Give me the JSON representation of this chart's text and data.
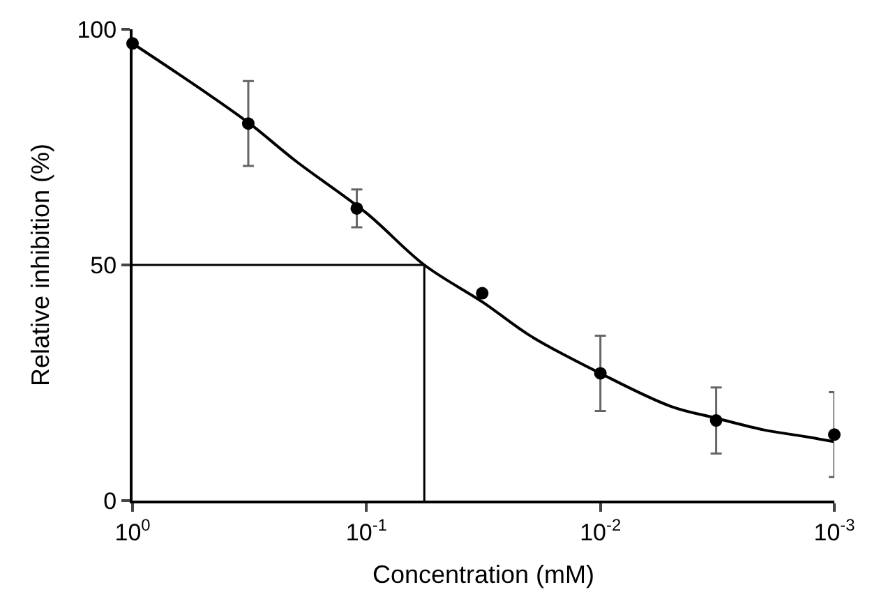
{
  "chart_data": {
    "type": "scatter",
    "xlabel": "Concentration (mM)",
    "ylabel": "Relative inhibition (%)",
    "log": "x",
    "xlim": [
      1,
      0.001
    ],
    "xticks": [
      {
        "value": 1,
        "label": "10$^{0}$"
      },
      {
        "value": 0.1,
        "label": "10$^{-1}$"
      },
      {
        "value": 0.01,
        "label": "10$^{-2}$"
      },
      {
        "value": 0.001,
        "label": "10$^{-3}$"
      }
    ],
    "ylim": [
      0,
      100
    ],
    "yticks": [
      0,
      50,
      100
    ],
    "x": [
      1,
      0.32,
      0.11,
      0.032,
      0.01,
      0.0032,
      0.001
    ],
    "series": [
      {
        "marker": "circle",
        "color": "#000000",
        "values": [
          97,
          80,
          62,
          44,
          27,
          17,
          14
        ],
        "errors": [
          null,
          9,
          4,
          null,
          8,
          7,
          9
        ]
      },
      {
        "type": "line",
        "marker": "none",
        "color": "#000000",
        "line_style": "solid",
        "x": [
          1,
          0.5,
          0.316,
          0.2,
          0.1,
          0.0566,
          0.0316,
          0.02,
          0.01,
          0.005,
          0.0032,
          0.002,
          0.0013,
          0.001
        ],
        "values": [
          97,
          87,
          80,
          72,
          61,
          50,
          42,
          35,
          27,
          20,
          17.5,
          15,
          13.5,
          12.5
        ]
      }
    ],
    "ref_lines": [
      {
        "axis": "y",
        "value": 50,
        "color": "#000000"
      },
      {
        "axis": "x",
        "value": 0.0566,
        "color": "#000000"
      }
    ]
  }
}
